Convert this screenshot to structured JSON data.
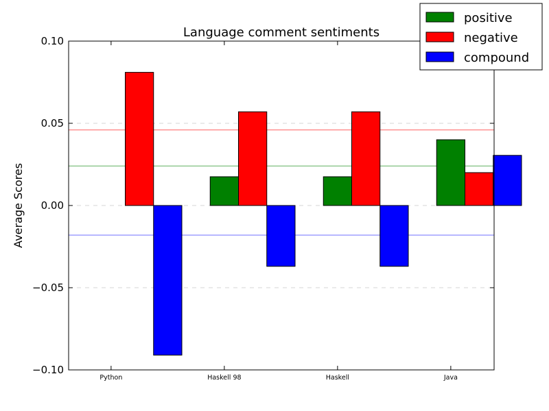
{
  "chart_data": {
    "type": "bar",
    "title": "Language comment sentiments",
    "xlabel": "",
    "ylabel": "Average Scores",
    "categories": [
      "Python",
      "Haskell 98",
      "Haskell",
      "Java"
    ],
    "series": [
      {
        "name": "positive",
        "color": "#008000",
        "values": [
          0.0,
          0.0175,
          0.0175,
          0.04
        ]
      },
      {
        "name": "negative",
        "color": "#ff0000",
        "values": [
          0.081,
          0.057,
          0.057,
          0.02
        ]
      },
      {
        "name": "compound",
        "color": "#0000ff",
        "values": [
          -0.091,
          -0.037,
          -0.037,
          0.0305
        ]
      }
    ],
    "ylim": [
      -0.1,
      0.1
    ],
    "yticks": [
      -0.1,
      -0.05,
      0.0,
      0.05,
      0.1
    ],
    "ytick_labels": [
      "−0.10",
      "−0.05",
      "0.00",
      "0.05",
      "0.10"
    ],
    "reference_lines": [
      {
        "series": "negative",
        "value": 0.046,
        "color": "#ff8080"
      },
      {
        "series": "positive",
        "value": 0.024,
        "color": "#80c080"
      },
      {
        "series": "compound",
        "value": -0.018,
        "color": "#8080ff"
      }
    ],
    "grid": "horizontal dashed",
    "legend_position": "top-right"
  }
}
